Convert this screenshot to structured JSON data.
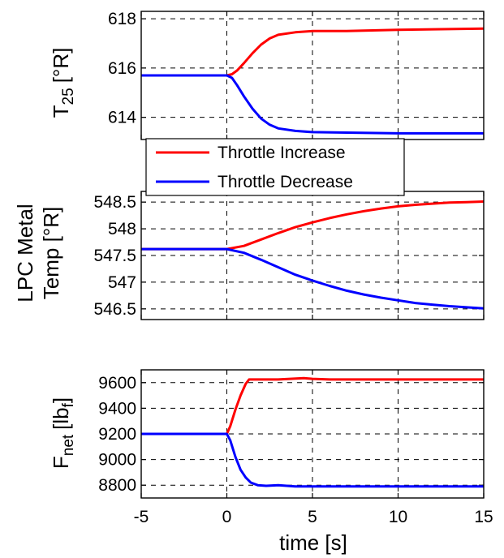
{
  "chart_data": [
    {
      "type": "line",
      "ylabel_main": "T",
      "ylabel_sub": "25",
      "ylabel_unit": "[°R]",
      "xlim": [
        -5,
        15
      ],
      "ylim": [
        613.1,
        618.3
      ],
      "yticks": [
        "618",
        "616",
        "614"
      ],
      "ytick_values": [
        618,
        616,
        614
      ],
      "xticks": [
        -5,
        0,
        5,
        10,
        15
      ],
      "grid": true,
      "series": [
        {
          "name": "Throttle Increase",
          "color": "#ff0000",
          "x": [
            -5,
            0,
            0.3,
            0.6,
            1.0,
            1.5,
            2.0,
            2.5,
            3.0,
            4.0,
            5.0,
            7.0,
            10.0,
            15.0
          ],
          "y": [
            615.7,
            615.7,
            615.75,
            615.9,
            616.2,
            616.6,
            616.95,
            617.2,
            617.35,
            617.45,
            617.5,
            617.5,
            617.55,
            617.6
          ]
        },
        {
          "name": "Throttle Decrease",
          "color": "#0000ff",
          "x": [
            -5,
            0,
            0.3,
            0.6,
            1.0,
            1.5,
            2.0,
            2.5,
            3.0,
            4.0,
            5.0,
            7.0,
            10.0,
            15.0
          ],
          "y": [
            615.7,
            615.7,
            615.6,
            615.3,
            614.85,
            614.35,
            613.95,
            613.7,
            613.55,
            613.45,
            613.4,
            613.38,
            613.35,
            613.35
          ]
        }
      ]
    },
    {
      "type": "line",
      "ylabel_line1": "LPC Metal",
      "ylabel_line2": "Temp [°R]",
      "xlim": [
        -5,
        15
      ],
      "ylim": [
        546.3,
        548.7
      ],
      "yticks": [
        "548.5",
        "548",
        "547.5",
        "547",
        "546.5"
      ],
      "ytick_values": [
        548.5,
        548,
        547.5,
        547,
        546.5
      ],
      "xticks": [
        -5,
        0,
        5,
        10,
        15
      ],
      "grid": true,
      "series": [
        {
          "name": "Throttle Increase",
          "color": "#ff0000",
          "x": [
            -5,
            0,
            1,
            2,
            3,
            4,
            5,
            6,
            7,
            8,
            9,
            10,
            11,
            12,
            13,
            14,
            15
          ],
          "y": [
            547.62,
            547.62,
            547.68,
            547.8,
            547.92,
            548.03,
            548.12,
            548.2,
            548.27,
            548.33,
            548.38,
            548.42,
            548.45,
            548.47,
            548.49,
            548.5,
            548.51
          ]
        },
        {
          "name": "Throttle Decrease",
          "color": "#0000ff",
          "x": [
            -5,
            0,
            1,
            2,
            3,
            4,
            5,
            6,
            7,
            8,
            9,
            10,
            11,
            12,
            13,
            14,
            15
          ],
          "y": [
            547.62,
            547.62,
            547.55,
            547.42,
            547.28,
            547.14,
            547.03,
            546.93,
            546.84,
            546.77,
            546.71,
            546.66,
            546.61,
            546.58,
            546.55,
            546.53,
            546.51
          ]
        }
      ]
    },
    {
      "type": "line",
      "ylabel_main": "F",
      "ylabel_sub": "net",
      "ylabel_unit_pre": "[lb",
      "ylabel_unit_sub": "f",
      "ylabel_unit_post": "]",
      "xlabel": "time [s]",
      "xlim": [
        -5,
        15
      ],
      "ylim": [
        8700,
        9700
      ],
      "yticks": [
        "9600",
        "9400",
        "9200",
        "9000",
        "8800"
      ],
      "ytick_values": [
        9600,
        9400,
        9200,
        9000,
        8800
      ],
      "xticks": [
        -5,
        0,
        5,
        10,
        15
      ],
      "xtick_labels": [
        "-5",
        "0",
        "5",
        "10",
        "15"
      ],
      "grid": true,
      "series": [
        {
          "name": "Throttle Increase",
          "color": "#ff0000",
          "x": [
            -5,
            0,
            0.2,
            0.5,
            0.8,
            1.1,
            1.3,
            1.6,
            2.0,
            3.0,
            4.5,
            5.0,
            6.0,
            10.0,
            15.0
          ],
          "y": [
            9200,
            9200,
            9260,
            9390,
            9500,
            9590,
            9625,
            9625,
            9625,
            9625,
            9635,
            9630,
            9625,
            9625,
            9625
          ]
        },
        {
          "name": "Throttle Decrease",
          "color": "#0000ff",
          "x": [
            -5,
            0,
            0.2,
            0.5,
            0.8,
            1.1,
            1.4,
            1.8,
            2.3,
            3.0,
            4.0,
            5.0,
            10.0,
            15.0
          ],
          "y": [
            9200,
            9200,
            9150,
            9020,
            8920,
            8860,
            8820,
            8800,
            8795,
            8800,
            8790,
            8790,
            8790,
            8790
          ]
        }
      ]
    }
  ],
  "legend": {
    "entries": [
      {
        "label": "Throttle Increase",
        "color": "#ff0000"
      },
      {
        "label": "Throttle Decrease",
        "color": "#0000ff"
      }
    ]
  }
}
